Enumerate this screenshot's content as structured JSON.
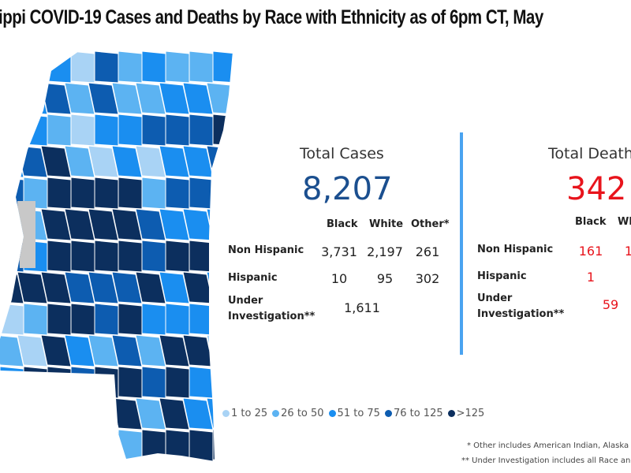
{
  "title": "ippi COVID-19 Cases and Deaths by Race with Ethnicity as of 6pm CT, May",
  "cases": {
    "title": "Total Cases",
    "total": "8,207",
    "color": "#1b4f8f",
    "columns": [
      "Black",
      "White",
      "Other*"
    ],
    "rows": [
      {
        "label": "Non Hispanic",
        "values": [
          "3,731",
          "2,197",
          "261"
        ]
      },
      {
        "label": "Hispanic",
        "values": [
          "10",
          "95",
          "302"
        ]
      },
      {
        "label": "Under Investigation**",
        "label1": "Under",
        "label2": "Investigation**",
        "value": "1,611"
      }
    ]
  },
  "deaths": {
    "title": "Total Death",
    "total": "342",
    "color": "#e8141c",
    "columns": [
      "Black",
      "Wh"
    ],
    "rows": [
      {
        "label": "Non Hispanic",
        "values": [
          "161",
          "1"
        ]
      },
      {
        "label": "Hispanic",
        "values": [
          "1",
          ""
        ]
      },
      {
        "label1": "Under",
        "label2": "Investigation**",
        "value": "59"
      }
    ]
  },
  "legend": [
    {
      "label": "1 to 25",
      "color": "#a9d3f5"
    },
    {
      "label": "26 to 50",
      "color": "#5cb3f2"
    },
    {
      "label": "51 to 75",
      "color": "#1a8ef0"
    },
    {
      "label": "76 to 125",
      "color": "#0d5cb0"
    },
    {
      "label": ">125",
      "color": "#0c2f5e"
    }
  ],
  "notes": [
    "* Other includes American Indian, Alaska N",
    "** Under Investigation includes all Race and"
  ]
}
